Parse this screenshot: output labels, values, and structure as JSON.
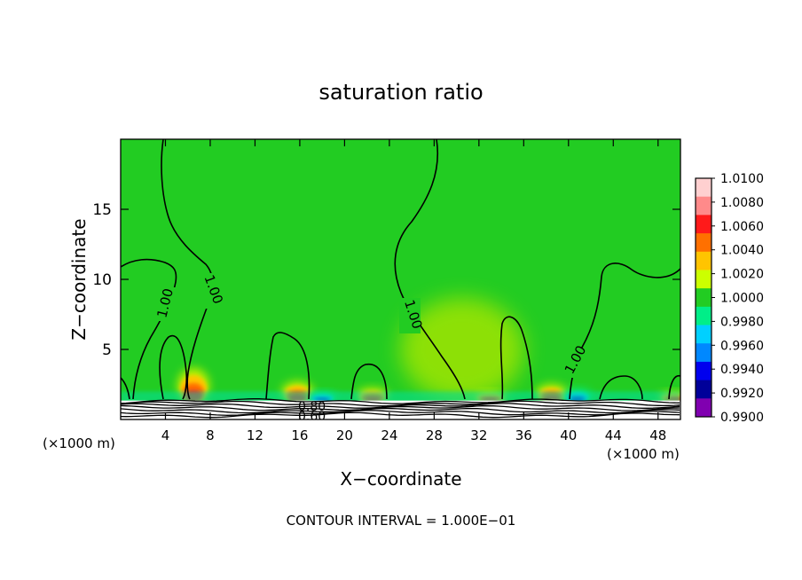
{
  "chart_data": {
    "type": "heatmap",
    "title": "saturation ratio",
    "xlabel": "X−coordinate",
    "ylabel": "Z−coordinate",
    "x_unit_left": "(×1000 m)",
    "x_unit_right": "(×1000 m)",
    "x_ticks": [
      "4",
      "8",
      "12",
      "16",
      "20",
      "24",
      "28",
      "32",
      "36",
      "40",
      "44",
      "48"
    ],
    "x_tick_values": [
      4,
      8,
      12,
      16,
      20,
      24,
      28,
      32,
      36,
      40,
      44,
      48
    ],
    "y_ticks": [
      "5",
      "10",
      "15"
    ],
    "y_tick_values": [
      5,
      10,
      15
    ],
    "xlim": [
      0,
      50
    ],
    "ylim": [
      0,
      20
    ],
    "footer": "CONTOUR INTERVAL = 1.000E−01",
    "contour_labels": [
      "1.00",
      "1.00",
      "1.00",
      "1.00",
      "0.80",
      "0.60"
    ],
    "colorbar": {
      "labels": [
        "1.0100",
        "1.0080",
        "1.0060",
        "1.0040",
        "1.0020",
        "1.0000",
        "0.9980",
        "0.9960",
        "0.9940",
        "0.9920",
        "0.9900"
      ],
      "values": [
        1.01,
        1.008,
        1.006,
        1.004,
        1.002,
        1.0,
        0.998,
        0.996,
        0.994,
        0.992,
        0.99
      ],
      "colors": [
        "#ffd0d0",
        "#ff8a8a",
        "#ff1a1a",
        "#ff7000",
        "#ffc400",
        "#ccff00",
        "#22cc22",
        "#00ee88",
        "#00d0ff",
        "#0088ff",
        "#0000ee",
        "#000099",
        "#8000b0"
      ]
    },
    "background_color": "#22cc22",
    "features": [
      {
        "x": 6.5,
        "kind": "max",
        "height": 3.8
      },
      {
        "x": 15.8,
        "kind": "max",
        "height": 2.8
      },
      {
        "x": 18.0,
        "kind": "min",
        "height": 2.0
      },
      {
        "x": 22.5,
        "kind": "max",
        "height": 2.3
      },
      {
        "x": 30.5,
        "kind": "weak-max",
        "height": 8.0
      },
      {
        "x": 33.0,
        "kind": "max",
        "height": 2.0
      },
      {
        "x": 38.5,
        "kind": "max",
        "height": 2.6
      },
      {
        "x": 40.8,
        "kind": "min",
        "height": 2.2
      },
      {
        "x": 49.5,
        "kind": "max",
        "height": 2.0
      }
    ]
  }
}
